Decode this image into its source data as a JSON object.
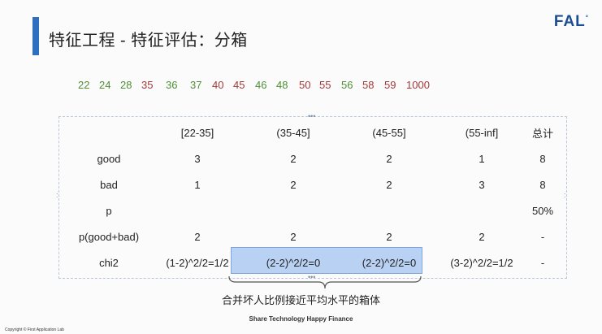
{
  "title": "特征工程 - 特征评估：分箱",
  "logo": "FAL",
  "logo_mark": "°",
  "numbers": [
    {
      "v": "22",
      "c": "g"
    },
    {
      "v": "24",
      "c": "g"
    },
    {
      "v": "28",
      "c": "g"
    },
    {
      "v": "35",
      "c": "r"
    },
    {
      "v": "36",
      "c": "g"
    },
    {
      "v": "37",
      "c": "g"
    },
    {
      "v": "40",
      "c": "r"
    },
    {
      "v": "45",
      "c": "r"
    },
    {
      "v": "46",
      "c": "g"
    },
    {
      "v": "48",
      "c": "g"
    },
    {
      "v": "50",
      "c": "r"
    },
    {
      "v": "55",
      "c": "r"
    },
    {
      "v": "56",
      "c": "g"
    },
    {
      "v": "58",
      "c": "r"
    },
    {
      "v": "59",
      "c": "r"
    },
    {
      "v": "1000",
      "c": "r"
    }
  ],
  "table": {
    "header": [
      "",
      "[22-35]",
      "(35-45]",
      "(45-55]",
      "(55-inf]",
      "总计"
    ],
    "rows": [
      [
        "good",
        "3",
        "2",
        "2",
        "1",
        "8"
      ],
      [
        "bad",
        "1",
        "2",
        "2",
        "3",
        "8"
      ],
      [
        "p",
        "",
        "",
        "",
        "",
        "50%"
      ],
      [
        "p(good+bad)",
        "2",
        "2",
        "2",
        "2",
        "-"
      ],
      [
        "chi2",
        "(1-2)^2/2=1/2",
        "(2-2)^2/2=0",
        "(2-2)^2/2=0",
        "(3-2)^2/2=1/2",
        "-"
      ]
    ]
  },
  "caption": "合并坏人比例接近平均水平的箱体",
  "footer": "Share Technology Happy Finance",
  "copyright": "Copyright © First Application Lab",
  "colors": {
    "green": "#4f8f36",
    "red": "#a23a3a",
    "accent": "#2f6fc0",
    "highlight": "#b9d1f3"
  }
}
